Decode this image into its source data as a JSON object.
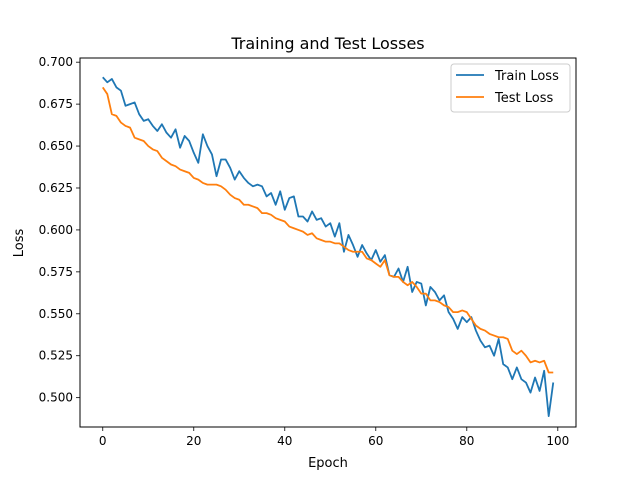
{
  "chart_data": {
    "type": "line",
    "title": "Training and Test Losses",
    "xlabel": "Epoch",
    "ylabel": "Loss",
    "xlim": [
      -5,
      104
    ],
    "ylim": [
      0.4825,
      0.7025
    ],
    "xticks": [
      0,
      20,
      40,
      60,
      80,
      100
    ],
    "yticks": [
      0.5,
      0.525,
      0.55,
      0.575,
      0.6,
      0.625,
      0.65,
      0.675,
      0.7
    ],
    "xtick_labels": [
      "0",
      "20",
      "40",
      "60",
      "80",
      "100"
    ],
    "ytick_labels": [
      "0.500",
      "0.525",
      "0.550",
      "0.575",
      "0.600",
      "0.625",
      "0.650",
      "0.675",
      "0.700"
    ],
    "grid": false,
    "legend_position": "upper right",
    "series": [
      {
        "name": "Train Loss",
        "color": "#1f77b4",
        "x": [
          0,
          1,
          2,
          3,
          4,
          5,
          6,
          7,
          8,
          9,
          10,
          11,
          12,
          13,
          14,
          15,
          16,
          17,
          18,
          19,
          20,
          21,
          22,
          23,
          24,
          25,
          26,
          27,
          28,
          29,
          30,
          31,
          32,
          33,
          34,
          35,
          36,
          37,
          38,
          39,
          40,
          41,
          42,
          43,
          44,
          45,
          46,
          47,
          48,
          49,
          50,
          51,
          52,
          53,
          54,
          55,
          56,
          57,
          58,
          59,
          60,
          61,
          62,
          63,
          64,
          65,
          66,
          67,
          68,
          69,
          70,
          71,
          72,
          73,
          74,
          75,
          76,
          77,
          78,
          79,
          80,
          81,
          82,
          83,
          84,
          85,
          86,
          87,
          88,
          89,
          90,
          91,
          92,
          93,
          94,
          95,
          96,
          97,
          98,
          99
        ],
        "values": [
          0.691,
          0.688,
          0.69,
          0.685,
          0.683,
          0.674,
          0.675,
          0.676,
          0.669,
          0.665,
          0.666,
          0.662,
          0.659,
          0.663,
          0.658,
          0.655,
          0.66,
          0.649,
          0.656,
          0.653,
          0.646,
          0.64,
          0.657,
          0.65,
          0.645,
          0.632,
          0.642,
          0.642,
          0.637,
          0.63,
          0.635,
          0.631,
          0.628,
          0.626,
          0.627,
          0.626,
          0.62,
          0.622,
          0.615,
          0.623,
          0.612,
          0.619,
          0.62,
          0.608,
          0.608,
          0.605,
          0.611,
          0.606,
          0.607,
          0.602,
          0.604,
          0.596,
          0.604,
          0.587,
          0.597,
          0.591,
          0.584,
          0.591,
          0.586,
          0.582,
          0.588,
          0.581,
          0.585,
          0.573,
          0.572,
          0.577,
          0.569,
          0.578,
          0.563,
          0.569,
          0.568,
          0.555,
          0.566,
          0.563,
          0.558,
          0.561,
          0.551,
          0.547,
          0.541,
          0.548,
          0.545,
          0.548,
          0.54,
          0.534,
          0.53,
          0.531,
          0.525,
          0.535,
          0.52,
          0.518,
          0.511,
          0.518,
          0.511,
          0.509,
          0.503,
          0.512,
          0.504,
          0.516,
          0.489,
          0.509
        ]
      },
      {
        "name": "Test Loss",
        "color": "#ff7f0e",
        "x": [
          0,
          1,
          2,
          3,
          4,
          5,
          6,
          7,
          8,
          9,
          10,
          11,
          12,
          13,
          14,
          15,
          16,
          17,
          18,
          19,
          20,
          21,
          22,
          23,
          24,
          25,
          26,
          27,
          28,
          29,
          30,
          31,
          32,
          33,
          34,
          35,
          36,
          37,
          38,
          39,
          40,
          41,
          42,
          43,
          44,
          45,
          46,
          47,
          48,
          49,
          50,
          51,
          52,
          53,
          54,
          55,
          56,
          57,
          58,
          59,
          60,
          61,
          62,
          63,
          64,
          65,
          66,
          67,
          68,
          69,
          70,
          71,
          72,
          73,
          74,
          75,
          76,
          77,
          78,
          79,
          80,
          81,
          82,
          83,
          84,
          85,
          86,
          87,
          88,
          89,
          90,
          91,
          92,
          93,
          94,
          95,
          96,
          97,
          98,
          99
        ],
        "values": [
          0.685,
          0.681,
          0.669,
          0.668,
          0.664,
          0.662,
          0.661,
          0.655,
          0.654,
          0.653,
          0.65,
          0.648,
          0.647,
          0.643,
          0.641,
          0.639,
          0.638,
          0.636,
          0.635,
          0.634,
          0.631,
          0.63,
          0.628,
          0.627,
          0.627,
          0.627,
          0.626,
          0.624,
          0.621,
          0.619,
          0.618,
          0.615,
          0.615,
          0.614,
          0.613,
          0.61,
          0.61,
          0.609,
          0.607,
          0.606,
          0.605,
          0.602,
          0.601,
          0.6,
          0.599,
          0.597,
          0.598,
          0.595,
          0.594,
          0.593,
          0.593,
          0.592,
          0.592,
          0.59,
          0.588,
          0.587,
          0.587,
          0.587,
          0.583,
          0.582,
          0.58,
          0.578,
          0.582,
          0.573,
          0.572,
          0.572,
          0.569,
          0.567,
          0.569,
          0.566,
          0.562,
          0.562,
          0.558,
          0.558,
          0.557,
          0.555,
          0.554,
          0.551,
          0.551,
          0.552,
          0.551,
          0.547,
          0.543,
          0.541,
          0.54,
          0.538,
          0.537,
          0.536,
          0.536,
          0.535,
          0.528,
          0.526,
          0.528,
          0.525,
          0.521,
          0.522,
          0.521,
          0.522,
          0.515,
          0.515
        ]
      }
    ]
  }
}
